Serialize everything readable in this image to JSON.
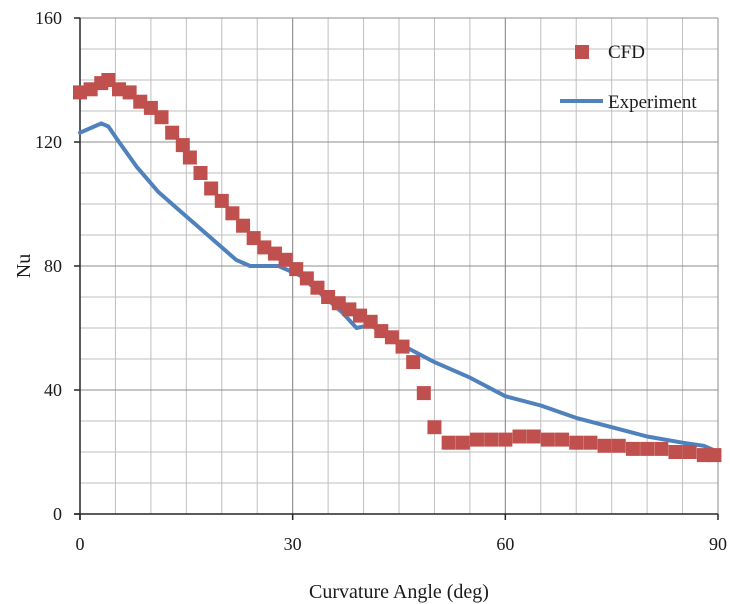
{
  "chart_data": {
    "type": "line",
    "title": "",
    "xlabel": "Curvature Angle (deg)",
    "ylabel": "Nu",
    "xlim": [
      0,
      90
    ],
    "ylim": [
      0,
      160
    ],
    "x_ticks": [
      0,
      30,
      60,
      90
    ],
    "y_ticks": [
      0,
      40,
      80,
      120,
      160
    ],
    "grid": true,
    "legend_position": "top-right",
    "series": [
      {
        "name": "CFD",
        "style": "markers",
        "marker": "square",
        "color": "#c0504d",
        "points": [
          [
            0,
            136
          ],
          [
            1.5,
            137
          ],
          [
            3,
            139
          ],
          [
            4,
            140
          ],
          [
            5.5,
            137
          ],
          [
            7,
            136
          ],
          [
            8.5,
            133
          ],
          [
            10,
            131
          ],
          [
            11.5,
            128
          ],
          [
            13,
            123
          ],
          [
            14.5,
            119
          ],
          [
            15.5,
            115
          ],
          [
            17,
            110
          ],
          [
            18.5,
            105
          ],
          [
            20,
            101
          ],
          [
            21.5,
            97
          ],
          [
            23,
            93
          ],
          [
            24.5,
            89
          ],
          [
            26,
            86
          ],
          [
            27.5,
            84
          ],
          [
            29,
            82
          ],
          [
            30.5,
            79
          ],
          [
            32,
            76
          ],
          [
            33.5,
            73
          ],
          [
            35,
            70
          ],
          [
            36.5,
            68
          ],
          [
            38,
            66
          ],
          [
            39.5,
            64
          ],
          [
            41,
            62
          ],
          [
            42.5,
            59
          ],
          [
            44,
            57
          ],
          [
            45.5,
            54
          ],
          [
            47,
            49
          ],
          [
            48.5,
            39
          ],
          [
            50,
            28
          ],
          [
            52,
            23
          ],
          [
            54,
            23
          ],
          [
            56,
            24
          ],
          [
            58,
            24
          ],
          [
            60,
            24
          ],
          [
            62,
            25
          ],
          [
            64,
            25
          ],
          [
            66,
            24
          ],
          [
            68,
            24
          ],
          [
            70,
            23
          ],
          [
            72,
            23
          ],
          [
            74,
            22
          ],
          [
            76,
            22
          ],
          [
            78,
            21
          ],
          [
            80,
            21
          ],
          [
            82,
            21
          ],
          [
            84,
            20
          ],
          [
            86,
            20
          ],
          [
            88,
            19
          ],
          [
            89.5,
            19
          ]
        ]
      },
      {
        "name": "Experiment",
        "style": "line",
        "color": "#4f81bd",
        "points": [
          [
            0,
            123
          ],
          [
            2,
            125
          ],
          [
            3,
            126
          ],
          [
            4,
            125
          ],
          [
            5.5,
            120
          ],
          [
            8,
            112
          ],
          [
            11,
            104
          ],
          [
            14,
            98
          ],
          [
            17,
            92
          ],
          [
            20,
            86
          ],
          [
            22,
            82
          ],
          [
            24,
            80
          ],
          [
            28,
            80
          ],
          [
            31,
            77
          ],
          [
            34,
            71
          ],
          [
            37,
            65
          ],
          [
            39,
            60
          ],
          [
            41,
            61
          ],
          [
            45,
            55
          ],
          [
            50,
            49
          ],
          [
            55,
            44
          ],
          [
            60,
            38
          ],
          [
            65,
            35
          ],
          [
            70,
            31
          ],
          [
            75,
            28
          ],
          [
            80,
            25
          ],
          [
            85,
            23
          ],
          [
            88,
            22
          ],
          [
            90,
            20
          ]
        ]
      }
    ]
  },
  "colors": {
    "cfd": "#c0504d",
    "experiment": "#4f81bd",
    "grid": "#bfbfbf",
    "axis": "#262626"
  }
}
